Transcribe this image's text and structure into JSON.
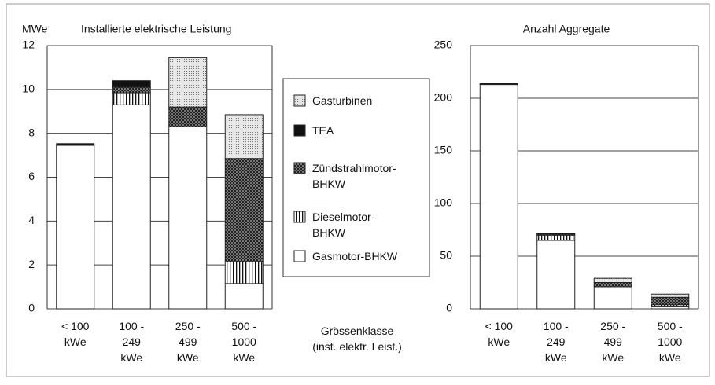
{
  "chart_data": [
    {
      "type": "stacked_bar",
      "y_unit": "MWe",
      "title": "Installierte elektrische Leistung",
      "categories": [
        "< 100\nkWe",
        "100 -\n249\nkWe",
        "250 -\n499\nkWe",
        "500 -\n1000\nkWe"
      ],
      "x_label": "Grössenklasse\n(inst. elektr. Leist.)",
      "series": [
        {
          "name": "Gasmotor-BHKW",
          "color": "#ffffff",
          "values": [
            7.45,
            9.3,
            8.3,
            1.15
          ]
        },
        {
          "name": "Dieselmotor-\nBHKW",
          "color": "#ffffff",
          "pattern": "vstripes",
          "values": [
            0,
            0.55,
            0,
            1.0
          ]
        },
        {
          "name": "Zündstrahlmotor-\nBHKW",
          "color": "#555555",
          "pattern": "crosshatch",
          "values": [
            0,
            0.25,
            0.9,
            4.7
          ]
        },
        {
          "name": "TEA",
          "color": "#111111",
          "values": [
            0.08,
            0.3,
            0,
            0
          ]
        },
        {
          "name": "Gasturbinen",
          "color": "#dddddd",
          "pattern": "dots",
          "values": [
            0,
            0,
            2.25,
            2.0
          ]
        }
      ],
      "ylim": [
        0,
        12
      ],
      "yticks": [
        0,
        2,
        4,
        6,
        8,
        10,
        12
      ],
      "grid": true
    },
    {
      "type": "stacked_bar",
      "title": "Anzahl Aggregate",
      "categories": [
        "< 100\nkWe",
        "100 -\n249\nkWe",
        "250 -\n499\nkWe",
        "500 -\n1000\nkWe"
      ],
      "series": [
        {
          "color": "#ffffff",
          "values": [
            213,
            65,
            21,
            2
          ]
        },
        {
          "color": "#ffffff",
          "pattern": "vstripes",
          "values": [
            0,
            5,
            0,
            2
          ]
        },
        {
          "color": "#555555",
          "pattern": "crosshatch",
          "values": [
            0,
            1,
            4,
            7
          ]
        },
        {
          "color": "#111111",
          "values": [
            1,
            1,
            0,
            0
          ]
        },
        {
          "color": "#dddddd",
          "pattern": "dots",
          "values": [
            0,
            0,
            4,
            3
          ]
        }
      ],
      "ylim": [
        0,
        250
      ],
      "yticks": [
        0,
        50,
        100,
        150,
        200,
        250
      ],
      "grid": true
    }
  ]
}
